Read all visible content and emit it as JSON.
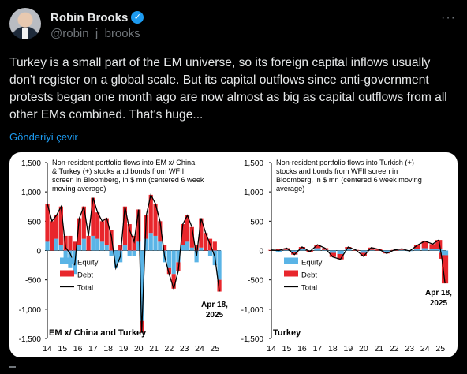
{
  "author": {
    "display_name": "Robin Brooks",
    "handle": "@robin_j_brooks",
    "verified": true
  },
  "tweet": {
    "text": "Turkey is a small part of the EM universe, so its foreign capital inflows usually don't register on a global scale. But its capital outflows since anti-government protests began one month ago are now almost as big as capital outflows from all other EMs combined. That's huge...",
    "translate_label": "Gönderiyi çevir"
  },
  "icons": {
    "verified": "verified-badge-icon",
    "more": "more-options-icon"
  },
  "colors": {
    "background": "#000000",
    "text": "#e7e9ea",
    "muted": "#71767b",
    "link": "#1d9bf0",
    "equity": "#5ab4e6",
    "debt": "#e8262c",
    "total": "#000000"
  },
  "chart_data": [
    {
      "type": "area",
      "title": "Non-resident portfolio flows into EM x/ China & Turkey (+) stocks and bonds from WFII screen in Bloomberg, in $ mn (centered 6 week moving average)",
      "corner_label": "EM x/ China and Turkey",
      "annotation": "Apr 18, 2025",
      "y_ticks": [
        "1,500",
        "1,000",
        "500",
        "0",
        "-500",
        "-1,000",
        "-1,500"
      ],
      "x_ticks": [
        "14",
        "15",
        "16",
        "17",
        "18",
        "19",
        "20",
        "21",
        "22",
        "23",
        "24",
        "25"
      ],
      "ylim": [
        -1500,
        1500
      ],
      "xlim": [
        2014,
        2025.4
      ],
      "legend": [
        "Equity",
        "Debt",
        "Total"
      ],
      "legend_placement": "lower-left",
      "x": [
        2014.0,
        2014.3,
        2014.6,
        2014.9,
        2015.2,
        2015.5,
        2015.8,
        2016.1,
        2016.4,
        2016.7,
        2017.0,
        2017.3,
        2017.6,
        2017.9,
        2018.2,
        2018.5,
        2018.8,
        2019.1,
        2019.4,
        2019.7,
        2020.0,
        2020.2,
        2020.5,
        2020.8,
        2021.1,
        2021.4,
        2021.7,
        2022.0,
        2022.3,
        2022.6,
        2022.9,
        2023.2,
        2023.5,
        2023.8,
        2024.1,
        2024.4,
        2024.7,
        2025.0,
        2025.3
      ],
      "series": [
        {
          "name": "Equity",
          "values": [
            150,
            0,
            200,
            100,
            -200,
            -300,
            -400,
            100,
            200,
            0,
            250,
            200,
            150,
            100,
            -100,
            -300,
            -200,
            100,
            -100,
            -100,
            150,
            -1200,
            200,
            300,
            250,
            150,
            -200,
            -300,
            -400,
            -200,
            100,
            150,
            50,
            -200,
            50,
            0,
            -100,
            -250,
            -500
          ]
        },
        {
          "name": "Debt",
          "values": [
            650,
            500,
            400,
            650,
            250,
            250,
            150,
            450,
            550,
            250,
            650,
            450,
            350,
            450,
            350,
            0,
            100,
            650,
            450,
            250,
            550,
            -200,
            400,
            650,
            550,
            350,
            100,
            -100,
            -250,
            -150,
            350,
            450,
            350,
            100,
            500,
            300,
            200,
            150,
            -200
          ]
        },
        {
          "name": "Total",
          "values": [
            800,
            500,
            600,
            750,
            50,
            -50,
            -250,
            550,
            750,
            250,
            900,
            650,
            500,
            550,
            250,
            -300,
            -100,
            750,
            350,
            150,
            700,
            -1400,
            600,
            950,
            800,
            500,
            -100,
            -400,
            -650,
            -350,
            450,
            600,
            400,
            -100,
            550,
            300,
            100,
            -100,
            -700
          ]
        }
      ]
    },
    {
      "type": "area",
      "title": "Non-resident portfolio flows into Turkish (+) stocks and bonds from WFII screen in Bloomberg, in $ mn (centered 6 week moving average)",
      "corner_label": "Turkey",
      "annotation": "Apr 18, 2025",
      "y_ticks": [
        "1,500",
        "1,000",
        "500",
        "0",
        "-500",
        "-1,000",
        "-1,500"
      ],
      "x_ticks": [
        "14",
        "15",
        "16",
        "17",
        "18",
        "19",
        "20",
        "21",
        "22",
        "23",
        "24",
        "25"
      ],
      "ylim": [
        -1500,
        1500
      ],
      "xlim": [
        2014,
        2025.4
      ],
      "legend": [
        "Equity",
        "Debt",
        "Total"
      ],
      "legend_placement": "lower-left",
      "x": [
        2014.0,
        2014.5,
        2015.0,
        2015.5,
        2016.0,
        2016.5,
        2017.0,
        2017.5,
        2018.0,
        2018.5,
        2019.0,
        2019.5,
        2020.0,
        2020.5,
        2021.0,
        2021.5,
        2022.0,
        2022.5,
        2023.0,
        2023.5,
        2024.0,
        2024.5,
        2024.9,
        2025.1,
        2025.3
      ],
      "series": [
        {
          "name": "Equity",
          "values": [
            0,
            -20,
            10,
            -30,
            20,
            0,
            40,
            10,
            -40,
            -60,
            20,
            0,
            -40,
            10,
            0,
            -20,
            0,
            10,
            -10,
            30,
            40,
            20,
            30,
            -40,
            -80
          ]
        },
        {
          "name": "Debt",
          "values": [
            10,
            20,
            30,
            -40,
            40,
            -20,
            60,
            30,
            -70,
            -90,
            40,
            10,
            -60,
            40,
            20,
            -30,
            10,
            20,
            0,
            60,
            120,
            90,
            150,
            -100,
            -480
          ]
        },
        {
          "name": "Total",
          "values": [
            10,
            0,
            40,
            -70,
            60,
            -20,
            100,
            40,
            -110,
            -150,
            60,
            10,
            -100,
            50,
            20,
            -50,
            10,
            30,
            -10,
            90,
            160,
            110,
            180,
            -140,
            -560
          ]
        }
      ]
    }
  ]
}
